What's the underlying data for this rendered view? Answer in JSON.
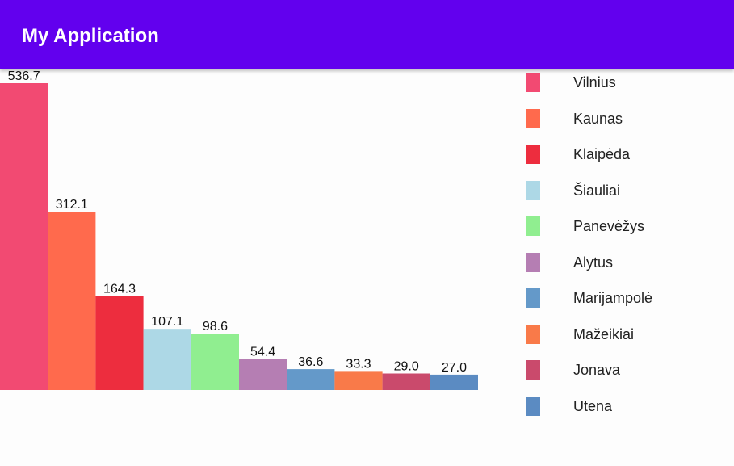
{
  "app_bar": {
    "title": "My Application"
  },
  "chart_data": {
    "type": "bar",
    "categories": [
      "Vilnius",
      "Kaunas",
      "Klaipėda",
      "Šiauliai",
      "Panevėžys",
      "Alytus",
      "Marijampolė",
      "Mažeikiai",
      "Jonava",
      "Utena"
    ],
    "values": [
      536.7,
      312.1,
      164.3,
      107.1,
      98.6,
      54.4,
      36.6,
      33.3,
      29.0,
      27.0
    ],
    "value_labels": [
      "536.7",
      "312.1",
      "164.3",
      "107.1",
      "98.6",
      "54.4",
      "36.6",
      "33.3",
      "29.0",
      "27.0"
    ],
    "colors": [
      "#f24a72",
      "#ff6a4d",
      "#ed2d3e",
      "#add8e6",
      "#90ee90",
      "#b57eb3",
      "#6499c9",
      "#f97a49",
      "#ca4a6c",
      "#5b8bc2"
    ],
    "title": "",
    "xlabel": "",
    "ylabel": "",
    "ylim": [
      0,
      536.7
    ],
    "legend_position": "right",
    "grid": false
  }
}
